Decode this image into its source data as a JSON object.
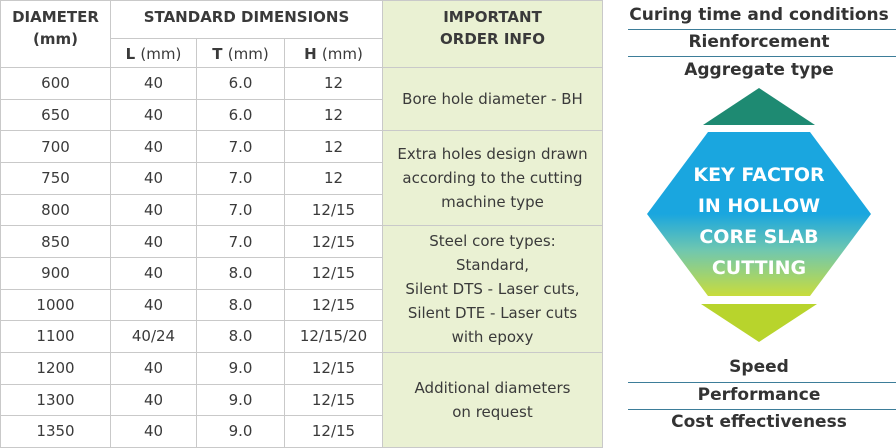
{
  "table": {
    "headers": {
      "diameter": [
        "DIAMETER",
        "(mm)"
      ],
      "standard_dimensions": "STANDARD DIMENSIONS",
      "important": [
        "IMPORTANT",
        "ORDER INFO"
      ],
      "sub": [
        {
          "name": "L",
          "unit": "(mm)"
        },
        {
          "name": "T",
          "unit": "(mm)"
        },
        {
          "name": "H",
          "unit": "(mm)"
        }
      ]
    },
    "rows": [
      [
        "600",
        "40",
        "6.0",
        "12"
      ],
      [
        "650",
        "40",
        "6.0",
        "12"
      ],
      [
        "700",
        "40",
        "7.0",
        "12"
      ],
      [
        "750",
        "40",
        "7.0",
        "12"
      ],
      [
        "800",
        "40",
        "7.0",
        "12/15"
      ],
      [
        "850",
        "40",
        "7.0",
        "12/15"
      ],
      [
        "900",
        "40",
        "8.0",
        "12/15"
      ],
      [
        "1000",
        "40",
        "8.0",
        "12/15"
      ],
      [
        "1100",
        "40/24",
        "8.0",
        "12/15/20"
      ],
      [
        "1200",
        "40",
        "9.0",
        "12/15"
      ],
      [
        "1300",
        "40",
        "9.0",
        "12/15"
      ],
      [
        "1350",
        "40",
        "9.0",
        "12/15"
      ]
    ],
    "info": [
      {
        "rows": 2,
        "lines": [
          "Bore hole diameter - BH"
        ]
      },
      {
        "rows": 3,
        "lines": [
          "Extra holes design drawn",
          "according to the cutting",
          "machine type"
        ]
      },
      {
        "rows": 4,
        "lines": [
          "Steel core types:",
          "Standard,",
          "Silent DTS - Laser cuts,",
          "Silent DTE - Laser cuts",
          "with epoxy"
        ]
      },
      {
        "rows": 3,
        "lines": [
          "Additional diameters",
          "on request"
        ]
      }
    ]
  },
  "side": {
    "top_labels": [
      "Curing time and conditions",
      "Rienforcement",
      "Aggregate type"
    ],
    "center_lines": [
      "KEY FACTOR",
      "IN HOLLOW",
      "CORE SLAB",
      "CUTTING"
    ],
    "bottom_labels": [
      "Speed",
      "Performance",
      "Cost effectiveness"
    ],
    "colors": {
      "top_arrow": "#1e8a72",
      "bottom_arrow": "#b8d42c",
      "hex_top": "#1aa6df",
      "hex_bottom": "#c8dc3c",
      "rule": "#3d7d99"
    }
  }
}
